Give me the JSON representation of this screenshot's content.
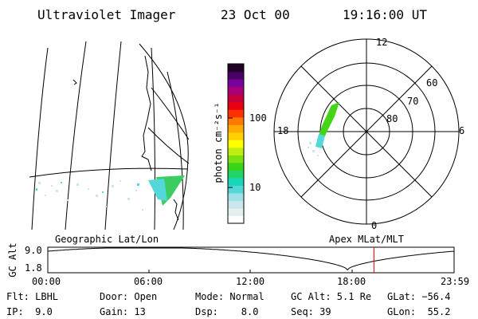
{
  "header": {
    "instrument": "Ultraviolet Imager",
    "date": "23 Oct 00",
    "time": "19:16:00 UT"
  },
  "colorbar": {
    "unit": "photon cm⁻²s⁻¹",
    "ticks": [
      "100",
      "10"
    ],
    "tick_values": [
      100,
      10
    ],
    "colors": [
      "#ffffff",
      "#e6eef0",
      "#c8e6ec",
      "#9fe0e6",
      "#52d8d8",
      "#18d6b8",
      "#22d46a",
      "#38d418",
      "#7ae012",
      "#c0ee10",
      "#ffff00",
      "#ffd000",
      "#ffaa00",
      "#ff7800",
      "#ff3000",
      "#e80010",
      "#c4003a",
      "#a8007a",
      "#7a009c",
      "#4a0066",
      "#200026"
    ]
  },
  "polar": {
    "lat_labels": [
      "60",
      "70",
      "80"
    ],
    "mlt_labels": [
      "12",
      "18",
      "6",
      "0"
    ]
  },
  "projections": {
    "left": "Geographic Lat/Lon",
    "right": "Apex MLat/MLT"
  },
  "orbit": {
    "ylabel": "GC Alt",
    "yticks": [
      "9.0",
      "1.8"
    ],
    "xticks": [
      "00:00",
      "06:00",
      "12:00",
      "18:00",
      "23:59"
    ],
    "current_time": "19:16",
    "altitude_range": [
      1.8,
      9.0
    ]
  },
  "info": {
    "flt": "Flt: LBHL",
    "door": "Door: Open",
    "mode": "Mode: Normal",
    "gc_alt": "GC Alt: 5.1 Re",
    "glat": "GLat: −56.4",
    "ip": "IP:  9.0",
    "gain": "Gain: 13",
    "dsp": "Dsp:    8.0",
    "seq": "Seq: 39",
    "glon": "GLon:  55.2"
  },
  "colors": {
    "marker": "#e00000",
    "aurora_green": "#44d418",
    "aurora_cyan": "#52d8d8"
  }
}
